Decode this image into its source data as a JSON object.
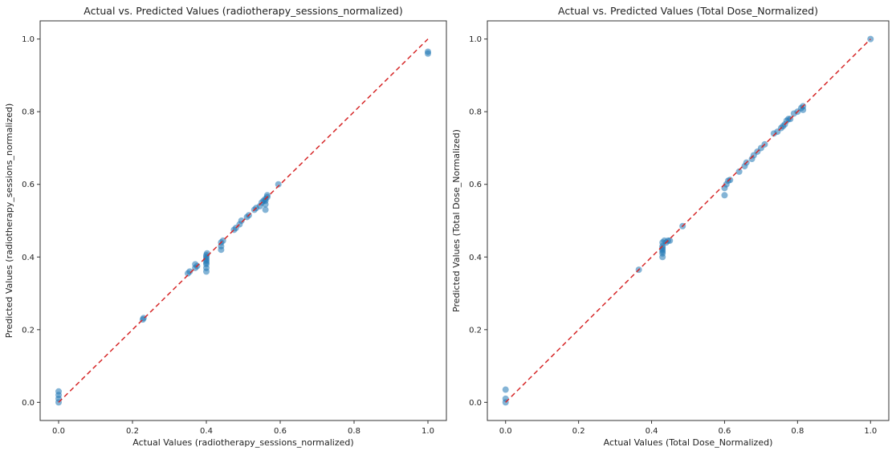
{
  "chart_data": [
    {
      "type": "scatter",
      "title": "Actual vs. Predicted Values (radiotherapy_sessions_normalized)",
      "xlabel": "Actual Values (radiotherapy_sessions_normalized)",
      "ylabel": "Predicted Values (radiotherapy_sessions_normalized)",
      "xlim": [
        -0.05,
        1.05
      ],
      "ylim": [
        -0.05,
        1.05
      ],
      "xticks": [
        "0.0",
        "0.2",
        "0.4",
        "0.6",
        "0.8",
        "1.0"
      ],
      "yticks": [
        "0.0",
        "0.2",
        "0.4",
        "0.6",
        "0.8",
        "1.0"
      ],
      "grid": false,
      "point_color": "#1f77b4",
      "reference_line": {
        "from": [
          0,
          0
        ],
        "to": [
          1,
          1
        ],
        "color": "#d62728",
        "style": "dashed"
      },
      "points": [
        [
          0.0,
          0.0
        ],
        [
          0.0,
          0.01
        ],
        [
          0.0,
          0.02
        ],
        [
          0.0,
          0.03
        ],
        [
          0.228,
          0.228
        ],
        [
          0.23,
          0.232
        ],
        [
          0.35,
          0.355
        ],
        [
          0.355,
          0.36
        ],
        [
          0.37,
          0.37
        ],
        [
          0.37,
          0.38
        ],
        [
          0.375,
          0.375
        ],
        [
          0.4,
          0.36
        ],
        [
          0.4,
          0.37
        ],
        [
          0.4,
          0.38
        ],
        [
          0.4,
          0.385
        ],
        [
          0.4,
          0.39
        ],
        [
          0.4,
          0.395
        ],
        [
          0.4,
          0.4
        ],
        [
          0.4,
          0.405
        ],
        [
          0.402,
          0.41
        ],
        [
          0.44,
          0.42
        ],
        [
          0.44,
          0.43
        ],
        [
          0.44,
          0.44
        ],
        [
          0.445,
          0.445
        ],
        [
          0.475,
          0.475
        ],
        [
          0.48,
          0.48
        ],
        [
          0.49,
          0.49
        ],
        [
          0.495,
          0.5
        ],
        [
          0.51,
          0.51
        ],
        [
          0.515,
          0.515
        ],
        [
          0.53,
          0.53
        ],
        [
          0.535,
          0.535
        ],
        [
          0.545,
          0.54
        ],
        [
          0.55,
          0.55
        ],
        [
          0.555,
          0.555
        ],
        [
          0.56,
          0.53
        ],
        [
          0.56,
          0.545
        ],
        [
          0.56,
          0.555
        ],
        [
          0.56,
          0.56
        ],
        [
          0.565,
          0.565
        ],
        [
          0.565,
          0.57
        ],
        [
          0.595,
          0.6
        ],
        [
          1.0,
          0.96
        ],
        [
          1.0,
          0.965
        ]
      ]
    },
    {
      "type": "scatter",
      "title": "Actual vs. Predicted Values (Total Dose_Normalized)",
      "xlabel": "Actual Values (Total Dose_Normalized)",
      "ylabel": "Predicted Values (Total Dose_Normalized)",
      "xlim": [
        -0.05,
        1.05
      ],
      "ylim": [
        -0.05,
        1.05
      ],
      "xticks": [
        "0.0",
        "0.2",
        "0.4",
        "0.6",
        "0.8",
        "1.0"
      ],
      "yticks": [
        "0.0",
        "0.2",
        "0.4",
        "0.6",
        "0.8",
        "1.0"
      ],
      "grid": false,
      "point_color": "#1f77b4",
      "reference_line": {
        "from": [
          0,
          0
        ],
        "to": [
          1,
          1
        ],
        "color": "#d62728",
        "style": "dashed"
      },
      "points": [
        [
          0.0,
          0.0
        ],
        [
          0.0,
          0.01
        ],
        [
          0.0,
          0.035
        ],
        [
          0.365,
          0.365
        ],
        [
          0.43,
          0.4
        ],
        [
          0.43,
          0.41
        ],
        [
          0.43,
          0.415
        ],
        [
          0.43,
          0.42
        ],
        [
          0.43,
          0.425
        ],
        [
          0.43,
          0.43
        ],
        [
          0.43,
          0.44
        ],
        [
          0.435,
          0.445
        ],
        [
          0.44,
          0.44
        ],
        [
          0.445,
          0.445
        ],
        [
          0.45,
          0.445
        ],
        [
          0.485,
          0.485
        ],
        [
          0.6,
          0.57
        ],
        [
          0.6,
          0.59
        ],
        [
          0.605,
          0.6
        ],
        [
          0.61,
          0.61
        ],
        [
          0.615,
          0.612
        ],
        [
          0.64,
          0.635
        ],
        [
          0.655,
          0.65
        ],
        [
          0.66,
          0.66
        ],
        [
          0.675,
          0.67
        ],
        [
          0.68,
          0.68
        ],
        [
          0.69,
          0.69
        ],
        [
          0.7,
          0.7
        ],
        [
          0.71,
          0.71
        ],
        [
          0.735,
          0.74
        ],
        [
          0.745,
          0.745
        ],
        [
          0.755,
          0.755
        ],
        [
          0.76,
          0.76
        ],
        [
          0.765,
          0.765
        ],
        [
          0.77,
          0.775
        ],
        [
          0.775,
          0.78
        ],
        [
          0.78,
          0.78
        ],
        [
          0.79,
          0.795
        ],
        [
          0.8,
          0.8
        ],
        [
          0.81,
          0.81
        ],
        [
          0.815,
          0.815
        ],
        [
          0.815,
          0.805
        ],
        [
          1.0,
          1.0
        ]
      ]
    }
  ]
}
